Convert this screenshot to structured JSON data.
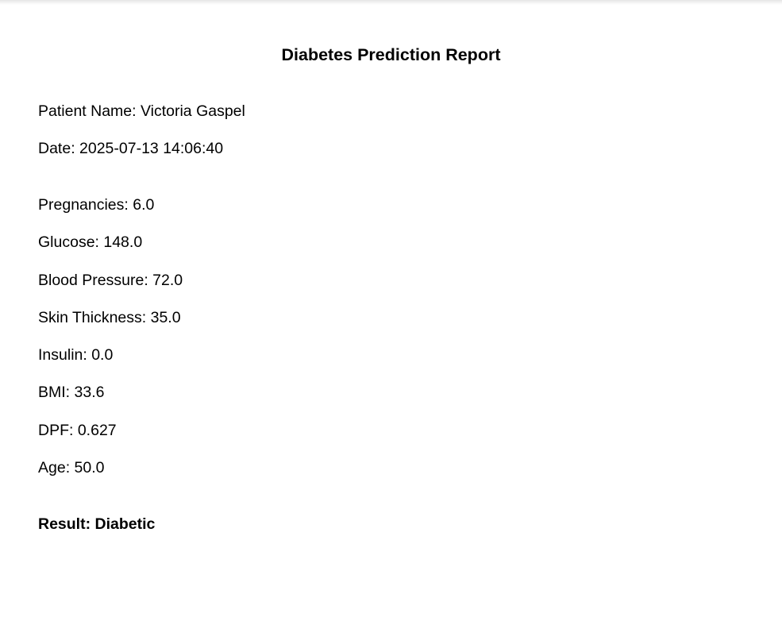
{
  "report": {
    "title": "Diabetes Prediction Report",
    "patient_name": "Patient Name: Victoria Gaspel",
    "date": "Date: 2025-07-13 14:06:40",
    "fields": {
      "pregnancies": "Pregnancies: 6.0",
      "glucose": "Glucose: 148.0",
      "blood_pressure": "Blood Pressure: 72.0",
      "skin_thickness": "Skin Thickness: 35.0",
      "insulin": "Insulin: 0.0",
      "bmi": "BMI: 33.6",
      "dpf": "DPF: 0.627",
      "age": "Age: 50.0"
    },
    "result": "Result: Diabetic"
  }
}
